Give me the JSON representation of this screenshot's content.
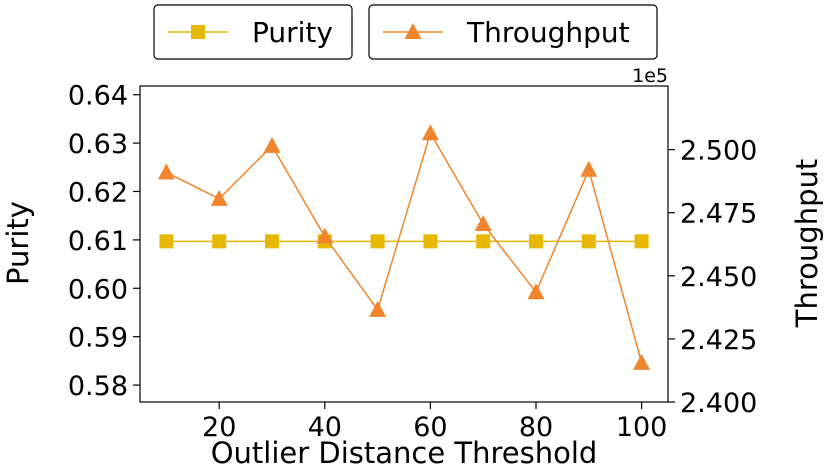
{
  "chart_data": {
    "type": "line",
    "title": "",
    "xlabel": "Outlier Distance Threshold",
    "ylabel_left": "Purity",
    "ylabel_right": "Throughput",
    "right_axis_offset_label": "1e5",
    "x": [
      10,
      20,
      30,
      40,
      50,
      60,
      70,
      80,
      90,
      100
    ],
    "x_ticks": [
      20,
      40,
      60,
      80,
      100
    ],
    "x_tick_labels": [
      "20",
      "40",
      "60",
      "80",
      "100"
    ],
    "xlim": [
      5,
      105
    ],
    "left_ylim": [
      0.5765,
      0.6418
    ],
    "left_y_ticks": [
      0.58,
      0.59,
      0.6,
      0.61,
      0.62,
      0.63,
      0.64
    ],
    "left_y_tick_labels": [
      "0.58",
      "0.59",
      "0.60",
      "0.61",
      "0.62",
      "0.63",
      "0.64"
    ],
    "right_ylim": [
      2.4,
      2.5252
    ],
    "right_y_ticks": [
      2.4,
      2.425,
      2.45,
      2.475,
      2.5
    ],
    "right_y_tick_labels": [
      "2.400",
      "2.425",
      "2.450",
      "2.475",
      "2.500"
    ],
    "grid": false,
    "legend_placement": "top",
    "series": [
      {
        "name": "Purity",
        "axis": "left",
        "marker": "square",
        "color": "#e6b800",
        "values": [
          0.6097,
          0.6097,
          0.6097,
          0.6097,
          0.6097,
          0.6097,
          0.6097,
          0.6097,
          0.6097,
          0.6097
        ]
      },
      {
        "name": "Throughput",
        "axis": "right",
        "marker": "triangle",
        "color": "#f0852d",
        "values": [
          2.491,
          2.4805,
          2.5015,
          2.4655,
          2.4365,
          2.5065,
          2.4705,
          2.4435,
          2.492,
          2.4155
        ]
      }
    ]
  }
}
